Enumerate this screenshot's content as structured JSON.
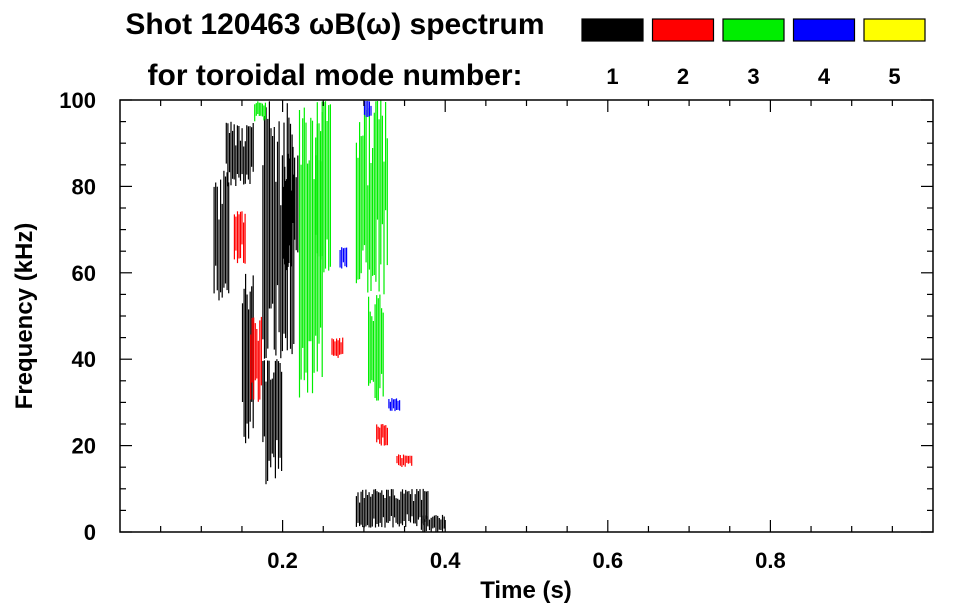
{
  "chart_data": {
    "type": "heatmap",
    "title": "Shot 120463 ωB(ω) spectrum",
    "subtitle": "for toroidal mode number:",
    "xlabel": "Time (s)",
    "ylabel": "Frequency (kHz)",
    "xlim": [
      0.0,
      1.0
    ],
    "ylim": [
      0,
      100
    ],
    "xticks": [
      0.2,
      0.4,
      0.6,
      0.8
    ],
    "xtick_labels": [
      "0.2",
      "0.4",
      "0.6",
      "0.8"
    ],
    "yticks": [
      0,
      20,
      40,
      60,
      80,
      100
    ],
    "ytick_labels": [
      "0",
      "20",
      "40",
      "60",
      "80",
      "100"
    ],
    "legend": {
      "placement": "top-right",
      "entries": [
        {
          "mode": "1",
          "color": "#000000"
        },
        {
          "mode": "2",
          "color": "#ff0000"
        },
        {
          "mode": "3",
          "color": "#00ee00"
        },
        {
          "mode": "4",
          "color": "#0000ff"
        },
        {
          "mode": "5",
          "color": "#ffff00"
        }
      ]
    },
    "regions": [
      {
        "mode": "1",
        "t": [
          0.115,
          0.135
        ],
        "f": [
          52,
          84
        ]
      },
      {
        "mode": "1",
        "t": [
          0.13,
          0.165
        ],
        "f": [
          80,
          95
        ]
      },
      {
        "mode": "1",
        "t": [
          0.15,
          0.165
        ],
        "f": [
          20,
          60
        ]
      },
      {
        "mode": "1",
        "t": [
          0.175,
          0.215
        ],
        "f": [
          40,
          100
        ]
      },
      {
        "mode": "1",
        "t": [
          0.175,
          0.2
        ],
        "f": [
          10,
          40
        ]
      },
      {
        "mode": "1",
        "t": [
          0.2,
          0.22
        ],
        "f": [
          60,
          90
        ]
      },
      {
        "mode": "1",
        "t": [
          0.29,
          0.38
        ],
        "f": [
          1,
          10
        ]
      },
      {
        "mode": "1",
        "t": [
          0.37,
          0.4
        ],
        "f": [
          0,
          4
        ]
      },
      {
        "mode": "2",
        "t": [
          0.14,
          0.155
        ],
        "f": [
          62,
          75
        ]
      },
      {
        "mode": "2",
        "t": [
          0.16,
          0.175
        ],
        "f": [
          30,
          50
        ]
      },
      {
        "mode": "2",
        "t": [
          0.26,
          0.275
        ],
        "f": [
          40,
          45
        ]
      },
      {
        "mode": "2",
        "t": [
          0.315,
          0.33
        ],
        "f": [
          20,
          25
        ]
      },
      {
        "mode": "2",
        "t": [
          0.34,
          0.36
        ],
        "f": [
          15,
          18
        ]
      },
      {
        "mode": "3",
        "t": [
          0.165,
          0.18
        ],
        "f": [
          95,
          100
        ]
      },
      {
        "mode": "3",
        "t": [
          0.22,
          0.25
        ],
        "f": [
          30,
          100
        ]
      },
      {
        "mode": "3",
        "t": [
          0.24,
          0.26
        ],
        "f": [
          60,
          100
        ]
      },
      {
        "mode": "3",
        "t": [
          0.29,
          0.33
        ],
        "f": [
          55,
          100
        ]
      },
      {
        "mode": "3",
        "t": [
          0.305,
          0.325
        ],
        "f": [
          30,
          55
        ]
      },
      {
        "mode": "4",
        "t": [
          0.27,
          0.28
        ],
        "f": [
          61,
          66
        ]
      },
      {
        "mode": "4",
        "t": [
          0.33,
          0.345
        ],
        "f": [
          28,
          31
        ]
      },
      {
        "mode": "4",
        "t": [
          0.3,
          0.31
        ],
        "f": [
          96,
          100
        ]
      }
    ]
  }
}
